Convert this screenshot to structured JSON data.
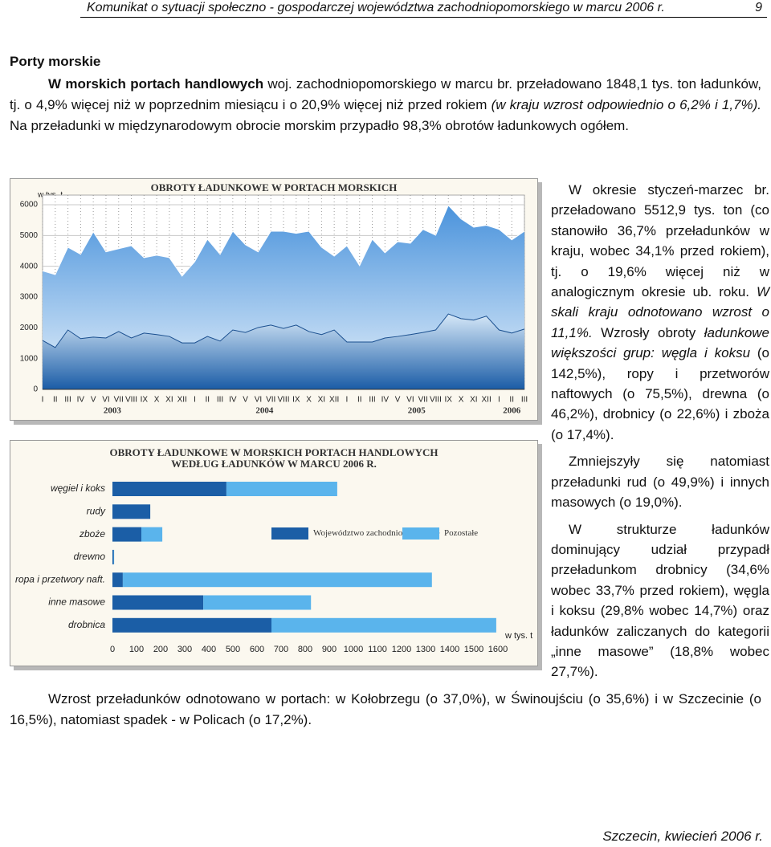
{
  "header": {
    "title": "Komunikat o sytuacji społeczno - gospodarczej województwa zachodniopomorskiego w marcu 2006 r.",
    "page": "9"
  },
  "section_title": "Porty morskie",
  "intro": [
    {
      "text": "W morskich portach handlowych",
      "style": "bold"
    },
    {
      "text": " woj. zachodniopomorskiego w marcu br. przeładowano 1848,1 tys. ton ładunków, tj. o 4,9% więcej niż w poprzednim miesiącu i o 20,9% więcej niż przed rokiem ",
      "style": "normal"
    },
    {
      "text": "(w kraju wzrost odpowiednio o 6,2% i 1,7%).",
      "style": "italic"
    },
    {
      "text": " Na przeładunki w międzynarodowym obrocie morskim przypadło 98,3% obrotów ładunkowych ogółem.",
      "style": "normal"
    }
  ],
  "side_text": [
    [
      {
        "text": "W okresie styczeń-marzec br. przeładowano 5512,9 tys. ton (co stanowiło 36,7% przeładunków w kraju, wobec 34,1% przed rokiem), tj. o 19,6% więcej niż w analogicznym okresie ub. roku. ",
        "style": "normal"
      },
      {
        "text": "W skali kraju odnotowano wzrost o 11,1%.",
        "style": "italic"
      },
      {
        "text": " Wzrosły obroty ",
        "style": "normal"
      },
      {
        "text": "ładunkowe większości grup: węgla i koksu",
        "style": "italic"
      },
      {
        "text": " (o 142,5%), ropy i przetworów naftowych (o 75,5%), drewna (o 46,2%), drobnicy (o 22,6%) i zboża (o 17,4%).",
        "style": "normal"
      }
    ],
    [
      {
        "text": "Zmniejszyły się natomiast przeładunki rud (o 49,9%) i innych masowych (o 19,0%).",
        "style": "normal"
      }
    ],
    [
      {
        "text": "W strukturze ładunków dominujący udział przypadł przeładunkom drobnicy (34,6% wobec 33,7% przed rokiem), węgla i koksu (29,8% wobec 14,7%) oraz ładunków zaliczanych do kategorii „inne masowe” (18,8% wobec 27,7%).",
        "style": "normal"
      }
    ]
  ],
  "closing": [
    {
      "text": "Wzrost przeładunków odnotowano w portach: w Kołobrzegu (o 37,0%), w Świnoujściu (o 35,6%) i w Szczecinie (o 16,5%), natomiast spadek - w Policach (o 17,2%).",
      "style": "normal"
    }
  ],
  "footer": "Szczecin, kwiecień 2006 r.",
  "chart_data": [
    {
      "type": "area",
      "title": "OBROTY ŁADUNKOWE W PORTACH MORSKICH",
      "y_label": "w tys. t",
      "categories": [
        "I",
        "II",
        "III",
        "IV",
        "V",
        "VI",
        "VII",
        "VIII",
        "IX",
        "X",
        "XI",
        "XII",
        "I",
        "II",
        "III",
        "IV",
        "V",
        "VI",
        "VII",
        "VIII",
        "IX",
        "X",
        "XI",
        "XII",
        "I",
        "II",
        "III",
        "IV",
        "V",
        "VI",
        "VII",
        "VIII",
        "IX",
        "X",
        "XI",
        "XII",
        "I",
        "II",
        "III"
      ],
      "groups": [
        "2003",
        "2004",
        "2005",
        "2006"
      ],
      "series": [
        {
          "color": "#4a93dc",
          "values": [
            3850,
            3730,
            4620,
            4390,
            5120,
            4470,
            4570,
            4670,
            4280,
            4360,
            4280,
            3680,
            4150,
            4880,
            4390,
            5140,
            4700,
            4470,
            5140,
            5140,
            5070,
            5140,
            4620,
            4330,
            4670,
            4020,
            4880,
            4440,
            4800,
            4750,
            5200,
            5010,
            5980,
            5540,
            5270,
            5330,
            5200,
            4860,
            5140
          ]
        },
        {
          "color": "#1a5ca6",
          "values": [
            1590,
            1360,
            1930,
            1650,
            1700,
            1670,
            1880,
            1670,
            1830,
            1780,
            1720,
            1510,
            1510,
            1720,
            1570,
            1930,
            1850,
            2010,
            2090,
            1980,
            2090,
            1880,
            1780,
            1930,
            1540,
            1540,
            1540,
            1670,
            1720,
            1780,
            1850,
            1930,
            2450,
            2300,
            2250,
            2380,
            1930,
            1830,
            1960
          ]
        }
      ],
      "ylim": [
        0,
        6000
      ],
      "yticks": [
        0,
        1000,
        2000,
        3000,
        4000,
        5000,
        6000
      ],
      "grid": true
    },
    {
      "type": "hbar",
      "title": [
        "OBROTY ŁADUNKOWE W MORSKICH PORTACH HANDLOWYCH",
        "WEDŁUG ŁADUNKÓW W MARCU 2006 R."
      ],
      "x_label": "w tys. t",
      "categories": [
        "węgiel i koks",
        "rudy",
        "zboże",
        "drewno",
        "ropa i przetwory naft.",
        "inne masowe",
        "drobnica"
      ],
      "stacked": true,
      "series": [
        {
          "name": "Województwo zachodniopomorskie",
          "color": "#1b5ea6",
          "values": [
            473,
            157,
            120,
            5,
            43,
            377,
            660
          ]
        },
        {
          "name": "Pozostałe",
          "color": "#5ab4ec",
          "values": [
            460,
            0,
            87,
            2,
            1283,
            447,
            933
          ]
        }
      ],
      "xlim": [
        0,
        1600
      ],
      "xticks": [
        0,
        100,
        200,
        300,
        400,
        500,
        600,
        700,
        800,
        900,
        1000,
        1100,
        1200,
        1300,
        1400,
        1500,
        1600
      ]
    }
  ]
}
